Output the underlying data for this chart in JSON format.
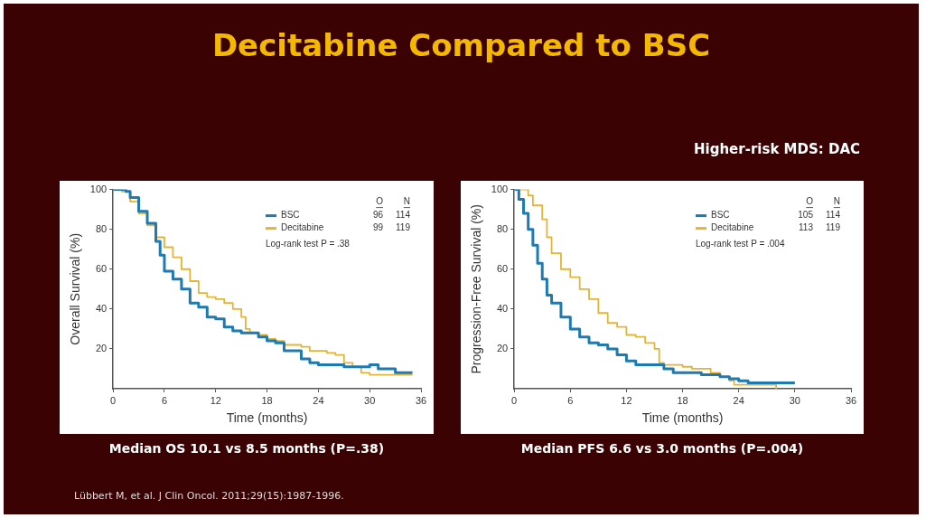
{
  "chart_data": [
    {
      "type": "step",
      "title": "Decitabine Compared to BSC",
      "xlabel": "Time (months)",
      "ylabel": "Overall Survival (%)",
      "xlim": [
        0,
        36
      ],
      "xticks": [
        0,
        6,
        12,
        18,
        24,
        30,
        36
      ],
      "ylim": [
        0,
        100
      ],
      "yticks": [
        20,
        40,
        60,
        80,
        100
      ],
      "grid": false,
      "legend": "top right",
      "marker": "none",
      "series": [
        {
          "name": "BSC",
          "color": "#1f7ab0",
          "x": [
            0,
            1.5,
            2,
            3,
            4,
            5,
            5.5,
            6,
            7,
            8,
            9,
            10,
            11,
            12,
            13,
            14,
            15,
            17,
            18,
            19,
            20,
            22,
            23,
            24,
            27,
            30,
            31,
            33,
            33,
            35
          ],
          "values": [
            100,
            99,
            96,
            89,
            83,
            74,
            67,
            59,
            55,
            50,
            43,
            41,
            36,
            35,
            31,
            29,
            28,
            26,
            24,
            23,
            19,
            15,
            13,
            12,
            11,
            12,
            10,
            10,
            8,
            8
          ]
        },
        {
          "name": "Decitabine",
          "color": "#e3b536",
          "x": [
            0,
            1,
            2,
            3,
            4,
            5,
            6,
            7,
            8,
            9,
            10,
            11,
            12,
            13,
            14,
            15,
            15.5,
            16,
            17,
            18,
            19,
            20,
            22,
            23,
            25,
            26,
            27,
            28,
            29,
            30,
            35
          ],
          "values": [
            100,
            99,
            94,
            88,
            82,
            76,
            71,
            66,
            60,
            54,
            48,
            46,
            45,
            43,
            40,
            36,
            30,
            28,
            27,
            25,
            24,
            22,
            21,
            19,
            18,
            17,
            13,
            11,
            8,
            7,
            7
          ]
        }
      ],
      "annotations": [
        "O",
        "N",
        "96",
        "114",
        "99",
        "119",
        "Log-rank test P = .38",
        "Median OS 10.1 vs 8.5 months (P=.38)",
        "Lübbert M, et al. J Clin Oncol. 2011;29(15):1987-1996."
      ]
    },
    {
      "type": "step",
      "subtitle": "Higher-risk MDS: DAC",
      "xlabel": "Time (months)",
      "ylabel": "Progression-Free Survival (%)",
      "xlim": [
        0,
        36
      ],
      "xticks": [
        0,
        6,
        12,
        18,
        24,
        30,
        36
      ],
      "ylim": [
        0,
        100
      ],
      "yticks": [
        20,
        40,
        60,
        80,
        100
      ],
      "grid": false,
      "legend": "top right",
      "marker": "none",
      "series": [
        {
          "name": "BSC",
          "color": "#1f7ab0",
          "x": [
            0,
            0.5,
            1,
            1.5,
            2,
            2.5,
            3,
            3.5,
            4,
            5,
            6,
            7,
            8,
            9,
            10,
            11,
            12,
            13,
            15,
            16,
            17,
            20,
            22,
            23,
            24,
            25,
            30
          ],
          "values": [
            100,
            95,
            88,
            80,
            72,
            63,
            55,
            47,
            43,
            36,
            30,
            26,
            23,
            22,
            20,
            17,
            14,
            12,
            12,
            10,
            8,
            7,
            6,
            5,
            4,
            3,
            3
          ]
        },
        {
          "name": "Decitabine",
          "color": "#e3b536",
          "x": [
            0,
            1,
            1.5,
            2,
            3,
            3.5,
            4,
            5,
            6,
            7,
            8,
            9,
            10,
            11,
            12,
            13,
            14,
            15,
            15.5,
            16,
            18,
            19,
            21,
            22,
            23,
            23.5,
            27,
            28
          ],
          "values": [
            100,
            100,
            97,
            92,
            85,
            76,
            68,
            60,
            56,
            50,
            45,
            38,
            33,
            31,
            27,
            26,
            23,
            20,
            13,
            12,
            11,
            10,
            8,
            6,
            4,
            2,
            2,
            0
          ]
        }
      ],
      "annotations": [
        "O",
        "N",
        "105",
        "114",
        "113",
        "119",
        "Log-rank test P = .004",
        "Median PFS 6.6 vs 3.0 months (P=.004)"
      ]
    }
  ]
}
